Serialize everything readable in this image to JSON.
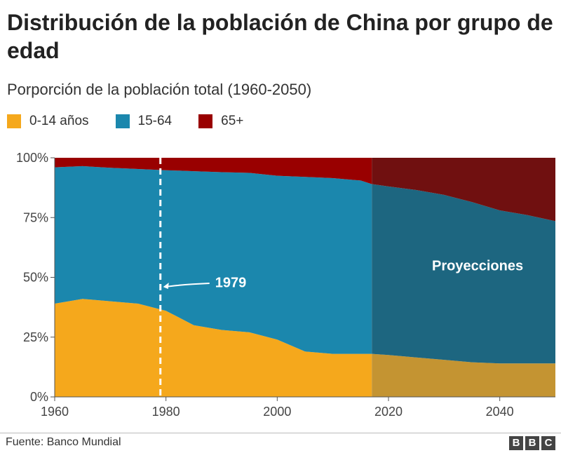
{
  "title": "Distribución de la población de China por grupo de edad",
  "source": "Fuente: Banco Mundial",
  "logo": [
    "B",
    "B",
    "C"
  ],
  "colors": {
    "0-14": "#f5a81c",
    "15-64": "#1b87ad",
    "65+": "#990000",
    "proj_0-14": "#c49432",
    "proj_15-64": "#1d6680",
    "proj_65+": "#701010"
  },
  "chart_data": {
    "type": "area",
    "subtitle": "Porporción de la población total (1960-2050)",
    "stacked": true,
    "x": [
      1960,
      1965,
      1970,
      1975,
      1980,
      1985,
      1990,
      1995,
      2000,
      2005,
      2010,
      2015,
      2017,
      2020,
      2025,
      2030,
      2035,
      2040,
      2045,
      2050
    ],
    "series": [
      {
        "name": "0-14 años",
        "key": "0-14",
        "values": [
          39,
          41,
          40,
          39,
          36,
          30,
          28,
          27,
          24,
          19,
          18,
          18,
          18,
          17.5,
          16.5,
          15.5,
          14.5,
          14,
          14,
          14
        ]
      },
      {
        "name": "15-64",
        "key": "15-64",
        "values": [
          57,
          55.5,
          55.8,
          56.3,
          58.8,
          64.4,
          66,
          66.7,
          68.5,
          73,
          73.5,
          72.5,
          71,
          70.5,
          70,
          69,
          67,
          64,
          62,
          59.5
        ]
      },
      {
        "name": "65+",
        "key": "65+",
        "values": [
          4,
          3.5,
          4.2,
          4.7,
          5.2,
          5.6,
          6,
          6.3,
          7.5,
          8,
          8.5,
          9.5,
          11,
          12,
          13.5,
          15.5,
          18.5,
          22,
          24,
          26.5
        ]
      }
    ],
    "xlim": [
      1960,
      2050
    ],
    "ylim": [
      0,
      100
    ],
    "x_ticks": [
      "1960",
      "1980",
      "2000",
      "2020",
      "2040"
    ],
    "y_ticks": [
      "0%",
      "25%",
      "50%",
      "75%",
      "100%"
    ],
    "projection_start": 2017,
    "annotations": {
      "marker_year": 1979,
      "marker_label": "1979",
      "projection_label": "Proyecciones"
    },
    "legend_position": "top-left",
    "grid": false
  }
}
